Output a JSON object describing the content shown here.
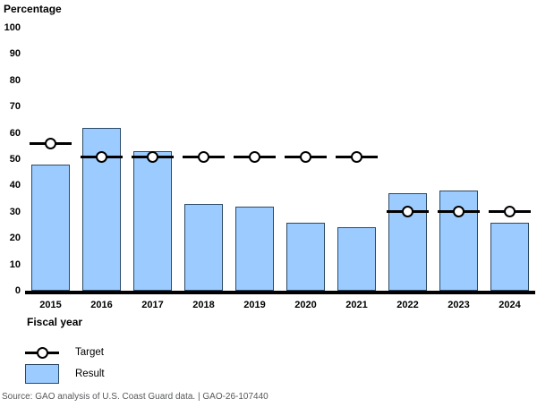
{
  "title": "Percentage",
  "x_axis_title": "Fiscal year",
  "legend": {
    "target_label": "Target",
    "result_label": "Result"
  },
  "source_note": "Source: GAO analysis of U.S. Coast Guard data.  |  GAO-26-107440",
  "colors": {
    "bar_fill": "#9CCBFF",
    "bar_border": "#2B4A66",
    "target_marker": "#000000",
    "axis_line": "#000000",
    "source_text": "#58595B"
  },
  "chart_data": {
    "type": "bar",
    "title": "",
    "categories": [
      "2015",
      "2016",
      "2017",
      "2018",
      "2019",
      "2020",
      "2021",
      "2022",
      "2023",
      "2024"
    ],
    "series": [
      {
        "name": "Target",
        "type": "line-marker",
        "marker": "open-circle",
        "values": [
          56,
          51,
          51,
          51,
          51,
          51,
          51,
          30,
          30,
          30
        ]
      },
      {
        "name": "Result",
        "type": "bar",
        "values": [
          48,
          62,
          53,
          33,
          32,
          26,
          24,
          37,
          38,
          26
        ]
      }
    ],
    "xlabel": "Fiscal year",
    "ylabel": "Percentage",
    "ylim": [
      0,
      100
    ],
    "y_ticks": [
      100,
      90,
      80,
      70,
      60,
      50,
      40,
      30,
      20,
      10,
      0
    ],
    "grid": false,
    "legend_position": "below-left"
  }
}
